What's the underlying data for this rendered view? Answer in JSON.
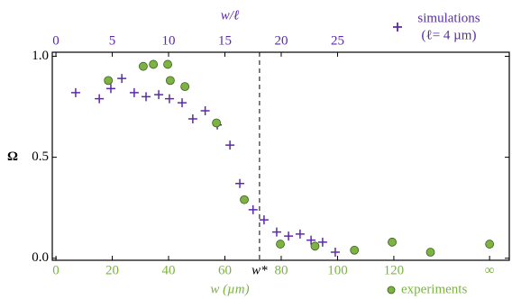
{
  "chart_data": {
    "type": "scatter",
    "xlabel": "w (µm)",
    "x2label": "w/ℓ",
    "ylabel": "Ω",
    "xlim": [
      -1.3,
      161
    ],
    "x2lim": [
      -0.325,
      40.25
    ],
    "ylim": [
      -0.01,
      1.02
    ],
    "xticks": [
      0,
      20,
      40,
      60,
      80,
      100,
      120,
      {
        "value": 154,
        "label": "∞"
      }
    ],
    "x2ticks": [
      0,
      5,
      10,
      15,
      20,
      25
    ],
    "yticks": [
      {
        "value": 0,
        "label": "0.0"
      },
      {
        "value": 0.5,
        "label": "0.5"
      },
      {
        "value": 1,
        "label": "1.0"
      }
    ],
    "threshold": {
      "value": 72.3,
      "label": "w*"
    },
    "grid": false,
    "series": [
      {
        "name": "simulations",
        "name_note": "(ℓ= 4 µm)",
        "marker": "plus",
        "color": "#5b2aa8",
        "legend": "top-right",
        "x": [
          7,
          15.4,
          19.5,
          23.4,
          27.8,
          32,
          36.5,
          40.3,
          44.8,
          48.6,
          53,
          57.3,
          61.8,
          65.3,
          70,
          73.9,
          78.4,
          82.6,
          86.7,
          90.6,
          94.7,
          99.2
        ],
        "values": [
          0.82,
          0.79,
          0.84,
          0.89,
          0.82,
          0.8,
          0.81,
          0.79,
          0.77,
          0.69,
          0.73,
          0.66,
          0.56,
          0.37,
          0.24,
          0.19,
          0.13,
          0.11,
          0.12,
          0.09,
          0.08,
          0.03
        ]
      },
      {
        "name": "experiments",
        "marker": "circle",
        "color": "#7cb342",
        "legend": "bottom-right",
        "x": [
          18.6,
          31,
          34.6,
          39.7,
          40.6,
          45.8,
          57,
          66.9,
          79.7,
          92,
          106,
          119.4,
          133,
          154
        ],
        "values": [
          0.88,
          0.95,
          0.96,
          0.96,
          0.88,
          0.85,
          0.67,
          0.29,
          0.07,
          0.06,
          0.04,
          0.08,
          0.03,
          0.07
        ]
      }
    ]
  }
}
